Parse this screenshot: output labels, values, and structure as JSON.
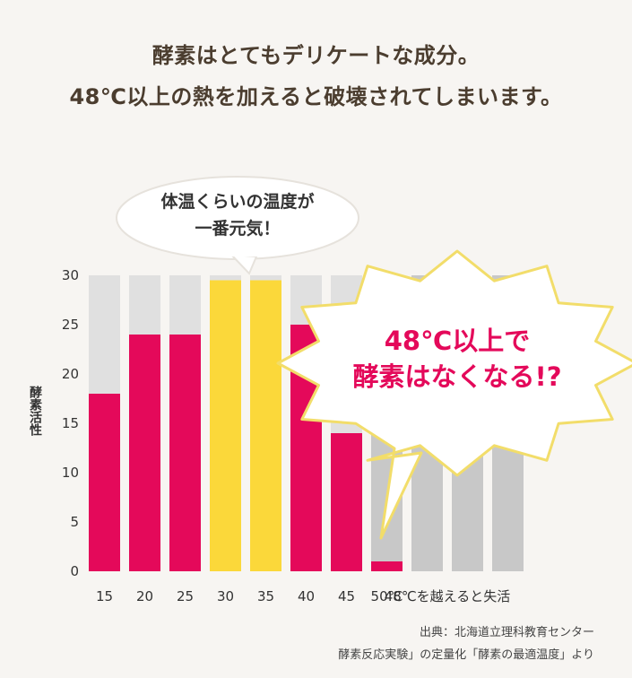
{
  "headline": {
    "line1": "酵素はとてもデリケートな成分。",
    "line2": "48℃以上の熱を加えると破壊されてしまいます。"
  },
  "bubble": {
    "line1": "体温くらいの温度が",
    "line2": "一番元気！"
  },
  "burst": {
    "line1": "48℃以上で",
    "line2": "酵素はなくなる!?"
  },
  "source": {
    "line1": "出典：北海道立理科教育センター",
    "line2": "酵素反応実験」の定量化「酵素の最適温度」より"
  },
  "colors": {
    "accent_pink": "#e4095a",
    "highlight_yellow": "#fbd83a",
    "bar_background": "#c8c8c8",
    "bar_background_light": "#e0e0e0",
    "burst_outline": "#f2dd6a"
  },
  "chart_data": {
    "type": "bar",
    "ylabel": "酵素活性",
    "ylim": [
      0,
      30
    ],
    "yticks": [
      0,
      5,
      10,
      15,
      20,
      25,
      30
    ],
    "categories": [
      "15",
      "20",
      "25",
      "30",
      "35",
      "40",
      "45",
      "50℃",
      "",
      "",
      ""
    ],
    "values": [
      18,
      24,
      24,
      29.5,
      29.5,
      25,
      14,
      1,
      0,
      0,
      0
    ],
    "highlighted": [
      "30",
      "35"
    ],
    "extra_xlabel": "48℃を越えると失活",
    "grid": false,
    "legend": "none"
  }
}
